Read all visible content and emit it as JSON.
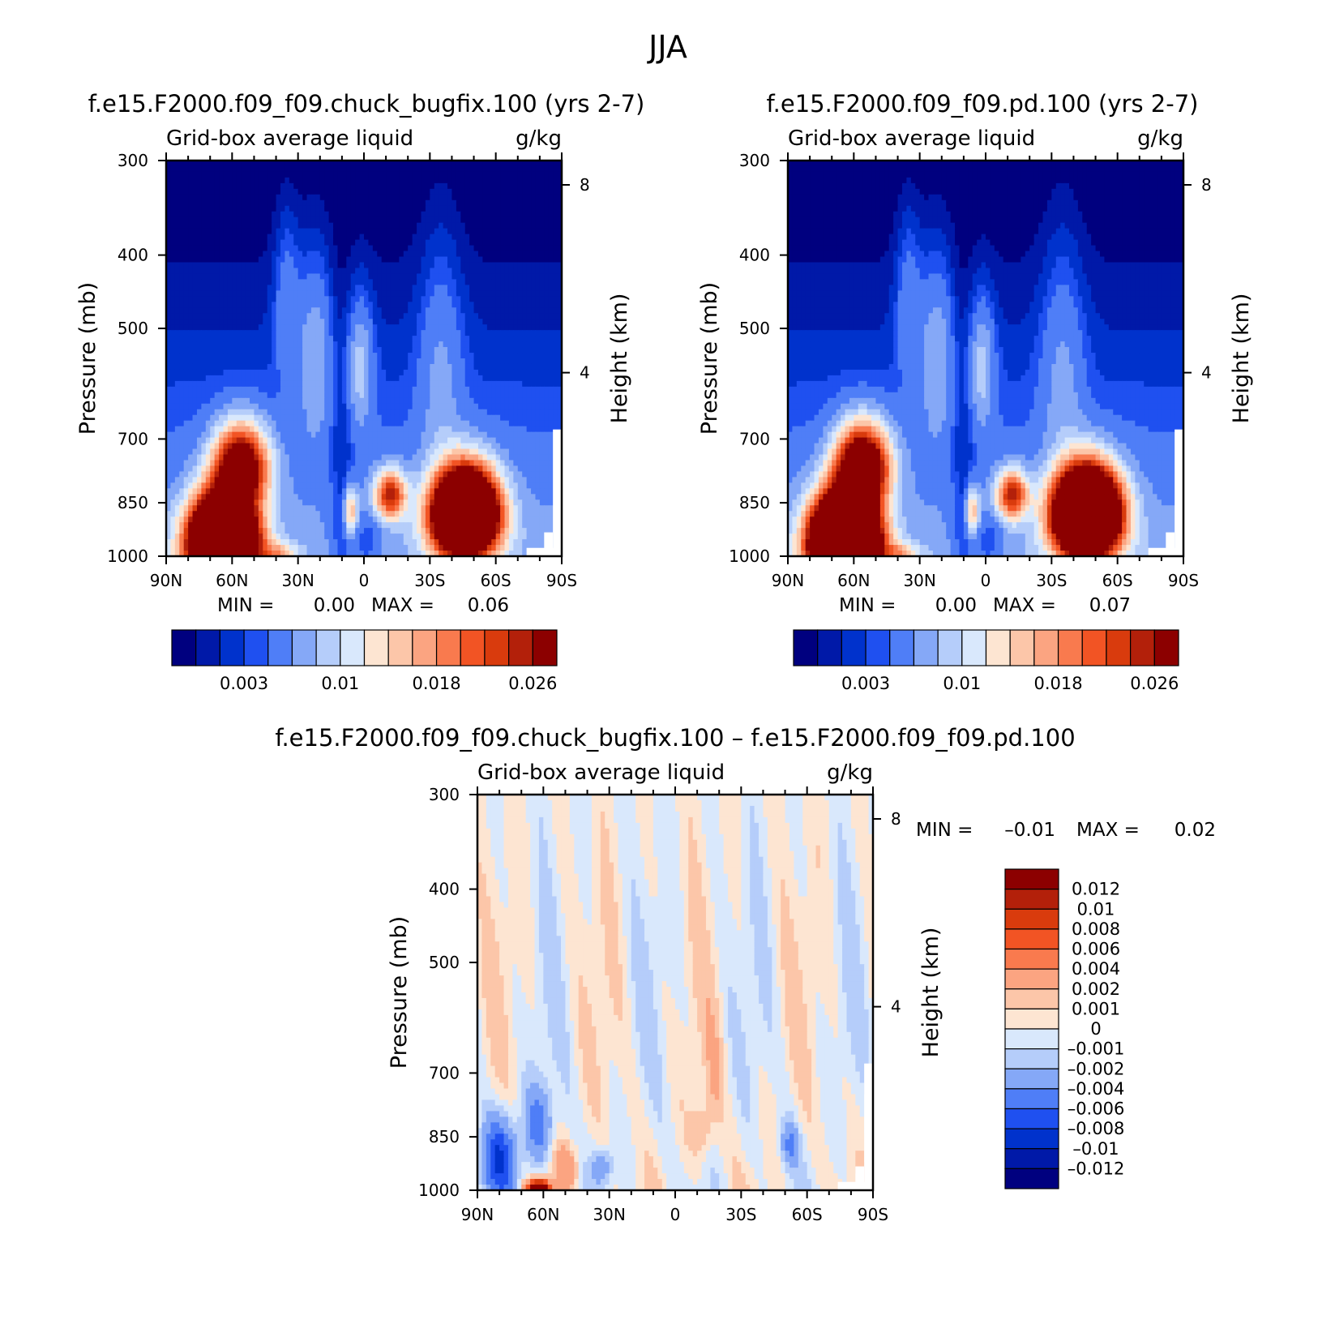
{
  "figure": {
    "title": "JJA"
  },
  "chart_data": [
    {
      "type": "heatmap",
      "title": "f.e15.F2000.f09_f09.chuck_bugfix.100 (yrs 2-7)",
      "subtitle_left": "Grid-box average liquid",
      "subtitle_right": "g/kg",
      "ylabel": "Pressure (mb)",
      "y2label": "Height (km)",
      "x_ticks": [
        "90N",
        "60N",
        "30N",
        "0",
        "30S",
        "60S",
        "90S"
      ],
      "y_ticks": [
        "300",
        "400",
        "500",
        "700",
        "850",
        "1000"
      ],
      "y_values": [
        300,
        400,
        500,
        700,
        850,
        1000
      ],
      "y2_ticks": [
        "8",
        "4"
      ],
      "y2_values": [
        8,
        4
      ],
      "ylim": [
        1000,
        300
      ],
      "stats": {
        "min_label": "MIN =",
        "min": "0.00",
        "max_label": "MAX =",
        "max": "0.06"
      },
      "colorbar": {
        "orientation": "horizontal",
        "labels": [
          "0.003",
          "0.01",
          "0.018",
          "0.026"
        ],
        "colors": [
          "#00007f",
          "#0019a8",
          "#0032cc",
          "#1f50f0",
          "#4f7ef7",
          "#85a8f7",
          "#b5cdfa",
          "#d9e8fc",
          "#fde5d2",
          "#fcc6a9",
          "#fba481",
          "#f97a4e",
          "#f25424",
          "#d93b0d",
          "#b3200a",
          "#8c0000"
        ]
      },
      "features": [
        {
          "name": "northern high-latitude maximum",
          "lat": 62,
          "p": 920,
          "value": 0.06
        },
        {
          "name": "southern mid-latitude maximum",
          "lat": -45,
          "p": 850,
          "value": 0.05
        },
        {
          "name": "subtropical maximum",
          "lat": -12,
          "p": 830,
          "value": 0.022
        }
      ]
    },
    {
      "type": "heatmap",
      "title": "f.e15.F2000.f09_f09.pd.100 (yrs 2-7)",
      "subtitle_left": "Grid-box average liquid",
      "subtitle_right": "g/kg",
      "ylabel": "Pressure (mb)",
      "y2label": "Height (km)",
      "x_ticks": [
        "90N",
        "60N",
        "30N",
        "0",
        "30S",
        "60S",
        "90S"
      ],
      "y_ticks": [
        "300",
        "400",
        "500",
        "700",
        "850",
        "1000"
      ],
      "y_values": [
        300,
        400,
        500,
        700,
        850,
        1000
      ],
      "y2_ticks": [
        "8",
        "4"
      ],
      "y2_values": [
        8,
        4
      ],
      "ylim": [
        1000,
        300
      ],
      "stats": {
        "min_label": "MIN =",
        "min": "0.00",
        "max_label": "MAX =",
        "max": "0.07"
      },
      "colorbar": {
        "orientation": "horizontal",
        "labels": [
          "0.003",
          "0.01",
          "0.018",
          "0.026"
        ],
        "colors": [
          "#00007f",
          "#0019a8",
          "#0032cc",
          "#1f50f0",
          "#4f7ef7",
          "#85a8f7",
          "#b5cdfa",
          "#d9e8fc",
          "#fde5d2",
          "#fcc6a9",
          "#fba481",
          "#f97a4e",
          "#f25424",
          "#d93b0d",
          "#b3200a",
          "#8c0000"
        ]
      },
      "features": [
        {
          "name": "northern high-latitude maximum",
          "lat": 62,
          "p": 920,
          "value": 0.07
        },
        {
          "name": "southern mid-latitude maximum",
          "lat": -45,
          "p": 850,
          "value": 0.055
        },
        {
          "name": "subtropical maximum",
          "lat": -12,
          "p": 830,
          "value": 0.022
        }
      ]
    },
    {
      "type": "heatmap",
      "title": "f.e15.F2000.f09_f09.chuck_bugfix.100 – f.e15.F2000.f09_f09.pd.100",
      "subtitle_left": "Grid-box average liquid",
      "subtitle_right": "g/kg",
      "ylabel": "Pressure (mb)",
      "y2label": "Height (km)",
      "x_ticks": [
        "90N",
        "60N",
        "30N",
        "0",
        "30S",
        "60S",
        "90S"
      ],
      "y_ticks": [
        "300",
        "400",
        "500",
        "700",
        "850",
        "1000"
      ],
      "y_values": [
        300,
        400,
        500,
        700,
        850,
        1000
      ],
      "y2_ticks": [
        "8",
        "4"
      ],
      "y2_values": [
        8,
        4
      ],
      "ylim": [
        1000,
        300
      ],
      "stats": {
        "min_label": "MIN =",
        "min": "–0.01",
        "max_label": "MAX =",
        "max": "0.02"
      },
      "colorbar": {
        "orientation": "vertical",
        "labels": [
          "0.012",
          "0.01",
          "0.008",
          "0.006",
          "0.004",
          "0.002",
          "0.001",
          "0",
          "–0.001",
          "–0.002",
          "–0.004",
          "–0.006",
          "–0.008",
          "–0.01",
          "–0.012"
        ],
        "colors": [
          "#8c0000",
          "#b3200a",
          "#d93b0d",
          "#f25424",
          "#f97a4e",
          "#fba481",
          "#fcc6a9",
          "#fde5d2",
          "#d9e8fc",
          "#b5cdfa",
          "#85a8f7",
          "#4f7ef7",
          "#1f50f0",
          "#0032cc",
          "#0019a8",
          "#00007f"
        ]
      },
      "features": [
        {
          "name": "negative high-latitude band",
          "lat": 75,
          "p": 850,
          "value": -0.006
        },
        {
          "name": "positive near-surface maximum",
          "lat": 60,
          "p": 990,
          "value": 0.02
        },
        {
          "name": "positive subtropical patch",
          "lat": -12,
          "p": 830,
          "value": 0.002
        }
      ]
    }
  ]
}
